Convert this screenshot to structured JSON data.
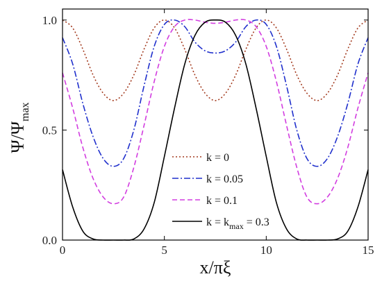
{
  "chart_data": {
    "type": "line",
    "xlabel": "x/πξ",
    "ylabel": "Ψ/Ψ",
    "ylabel_sub": "max",
    "xlim": [
      0,
      15
    ],
    "ylim": [
      0,
      1.05
    ],
    "x_ticks": [
      0,
      5,
      10,
      15
    ],
    "x_tick_labels": [
      "0",
      "5",
      "10",
      "15"
    ],
    "y_ticks": [
      0,
      0.5,
      1.0
    ],
    "y_tick_labels": [
      "0.0",
      "0.5",
      "1.0"
    ],
    "grid": false,
    "legend_position": "lower-right",
    "series": [
      {
        "name": "k = 0",
        "label_parts": {
          "pre": "k = 0",
          "sub": "",
          "post": ""
        },
        "color": "#a33a1e",
        "dash": "2,3",
        "x": [
          0,
          0.5,
          1.0,
          1.5,
          2.0,
          2.5,
          3.0,
          3.5,
          4.0,
          4.5,
          5.0,
          5.5,
          6.0,
          6.5,
          7.0,
          7.5,
          8.0,
          8.5,
          9.0,
          9.5,
          10.0,
          10.5,
          11.0,
          11.5,
          12.0,
          12.5,
          13.0,
          13.5,
          14.0,
          14.5,
          15.0
        ],
        "y": [
          1.0,
          0.964,
          0.867,
          0.75,
          0.667,
          0.634,
          0.667,
          0.75,
          0.867,
          0.964,
          1.0,
          0.964,
          0.867,
          0.75,
          0.667,
          0.634,
          0.667,
          0.75,
          0.867,
          0.964,
          1.0,
          0.964,
          0.867,
          0.75,
          0.667,
          0.634,
          0.667,
          0.75,
          0.867,
          0.964,
          1.0
        ]
      },
      {
        "name": "k = 0.05",
        "label_parts": {
          "pre": "k = 0.05",
          "sub": "",
          "post": ""
        },
        "color": "#1f2fcc",
        "dash": "9,3,2,3",
        "x": [
          0,
          0.5,
          1.0,
          1.5,
          2.0,
          2.5,
          3.0,
          3.5,
          4.0,
          4.5,
          5.0,
          5.5,
          6.0,
          6.5,
          7.0,
          7.5,
          8.0,
          8.5,
          9.0,
          9.5,
          10.0,
          10.5,
          11.0,
          11.5,
          12.0,
          12.5,
          13.0,
          13.5,
          14.0,
          14.5,
          15.0
        ],
        "y": [
          0.92,
          0.8,
          0.62,
          0.47,
          0.37,
          0.335,
          0.37,
          0.5,
          0.7,
          0.88,
          0.98,
          1.0,
          0.97,
          0.9,
          0.86,
          0.85,
          0.86,
          0.9,
          0.97,
          1.0,
          0.98,
          0.88,
          0.7,
          0.5,
          0.37,
          0.335,
          0.37,
          0.47,
          0.62,
          0.8,
          0.92
        ]
      },
      {
        "name": "k = 0.1",
        "label_parts": {
          "pre": "k = 0.1",
          "sub": "",
          "post": ""
        },
        "color": "#d23de0",
        "dash": "7,4",
        "x": [
          0,
          0.5,
          1.0,
          1.5,
          2.0,
          2.5,
          3.0,
          3.5,
          4.0,
          4.5,
          5.0,
          5.5,
          6.0,
          6.5,
          7.0,
          7.5,
          8.0,
          8.5,
          9.0,
          9.5,
          10.0,
          10.5,
          11.0,
          11.5,
          12.0,
          12.5,
          13.0,
          13.5,
          14.0,
          14.5,
          15.0
        ],
        "y": [
          0.76,
          0.6,
          0.42,
          0.28,
          0.195,
          0.165,
          0.195,
          0.33,
          0.52,
          0.72,
          0.88,
          0.97,
          1.0,
          1.0,
          0.99,
          0.985,
          0.99,
          1.0,
          1.0,
          0.97,
          0.88,
          0.72,
          0.52,
          0.33,
          0.195,
          0.165,
          0.195,
          0.28,
          0.42,
          0.6,
          0.76
        ]
      },
      {
        "name": "k = kmax = 0.3",
        "label_parts": {
          "pre": "k = k",
          "sub": "max",
          "post": " = 0.3"
        },
        "color": "#000000",
        "dash": "",
        "x": [
          0,
          0.5,
          1.0,
          1.5,
          2.0,
          2.5,
          3.0,
          3.5,
          4.0,
          4.5,
          5.0,
          5.5,
          6.0,
          6.5,
          7.0,
          7.5,
          8.0,
          8.5,
          9.0,
          9.5,
          10.0,
          10.5,
          11.0,
          11.5,
          12.0,
          12.5,
          13.0,
          13.5,
          14.0,
          14.5,
          15.0
        ],
        "y": [
          0.32,
          0.15,
          0.04,
          0.005,
          0.0,
          0.0,
          0.0,
          0.005,
          0.05,
          0.17,
          0.38,
          0.6,
          0.8,
          0.93,
          0.99,
          1.0,
          0.99,
          0.93,
          0.8,
          0.6,
          0.38,
          0.17,
          0.05,
          0.005,
          0.0,
          0.0,
          0.0,
          0.005,
          0.04,
          0.15,
          0.32
        ]
      }
    ]
  }
}
